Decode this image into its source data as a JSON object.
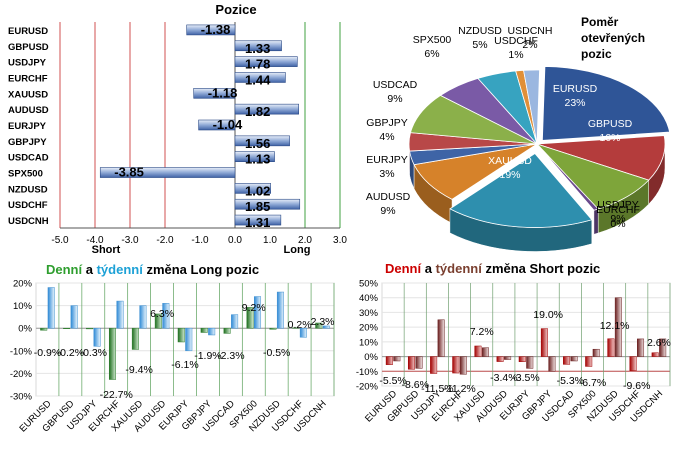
{
  "colors": {
    "green_title": "#2e9e2e",
    "blue_title": "#1da1d6",
    "red_title": "#cc0000",
    "brown_title": "#7a3f2f",
    "daily_bar": "#2e8b2e",
    "weekly_bar": "#4aa3e0",
    "short_daily": "#c00000",
    "short_weekly": "#7a3030",
    "pos_bar": "#5a7fbf",
    "short_line": "#c05050",
    "long_line": "#40a040"
  },
  "chart_data": [
    {
      "type": "bar",
      "orientation": "horizontal",
      "title": "Pozice",
      "categories": [
        "EURUSD",
        "GBPUSD",
        "USDJPY",
        "EURCHF",
        "XAUUSD",
        "AUDUSD",
        "EURJPY",
        "GBPJPY",
        "USDCAD",
        "SPX500",
        "NZDUSD",
        "USDCHF",
        "USDCNH"
      ],
      "values": [
        -1.38,
        1.33,
        1.78,
        1.44,
        -1.18,
        1.82,
        -1.04,
        1.56,
        1.13,
        -3.85,
        1.02,
        1.85,
        1.31
      ],
      "value_labels": [
        "-1.38",
        "1.33",
        "1.78",
        "1.44",
        "-1.18",
        "1.82",
        "-1.04",
        "1.56",
        "1.13",
        "-3.85",
        "1.02",
        "1.85",
        "1.31"
      ],
      "xlim": [
        -5.0,
        3.0
      ],
      "xticks": [
        "-5.0",
        "-4.0",
        "-3.0",
        "-2.0",
        "-1.0",
        "0.0",
        "1.0",
        "2.0",
        "3.0"
      ],
      "annotations": {
        "short": "Short",
        "long": "Long"
      }
    },
    {
      "type": "pie",
      "title_lines": [
        "Poměr",
        "otevřených",
        "pozic"
      ],
      "slices": [
        {
          "label": "EURUSD",
          "pct": "23%",
          "value": 23,
          "color": "#2f5597"
        },
        {
          "label": "GBPUSD",
          "pct": "10%",
          "value": 10,
          "color": "#b43c3c"
        },
        {
          "label": "USDJPY",
          "pct": "9%",
          "value": 9,
          "color": "#7ea53a"
        },
        {
          "label": "EURCHF",
          "pct": "0%",
          "value": 0.6,
          "color": "#6a4a8c"
        },
        {
          "label": "XAUUSD",
          "pct": "19%",
          "value": 19,
          "color": "#2e8fae"
        },
        {
          "label": "AUDUSD",
          "pct": "9%",
          "value": 9,
          "color": "#d6822a"
        },
        {
          "label": "EURJPY",
          "pct": "3%",
          "value": 3,
          "color": "#3e64a6"
        },
        {
          "label": "GBPJPY",
          "pct": "4%",
          "value": 4,
          "color": "#b84848"
        },
        {
          "label": "USDCAD",
          "pct": "9%",
          "value": 9,
          "color": "#8bb04a"
        },
        {
          "label": "SPX500",
          "pct": "6%",
          "value": 6,
          "color": "#7a5aa6"
        },
        {
          "label": "NZDUSD",
          "pct": "5%",
          "value": 5,
          "color": "#37a3c0"
        },
        {
          "label": "USDCHF",
          "pct": "1%",
          "value": 1,
          "color": "#e08f38"
        },
        {
          "label": "USDCNH",
          "pct": "2%",
          "value": 2,
          "color": "#9bb7e0"
        }
      ]
    },
    {
      "type": "bar",
      "title_parts": [
        "Denní",
        " a ",
        "týdenní",
        " změna Long pozic"
      ],
      "categories": [
        "EURUSD",
        "GBPUSD",
        "USDJPY",
        "EURCHF",
        "XAUUSD",
        "AUDUSD",
        "EURJPY",
        "GBPJPY",
        "USDCAD",
        "SPX500",
        "NZDUSD",
        "USDCHF",
        "USDCNH"
      ],
      "series": [
        {
          "values": [
            -0.9,
            -0.2,
            -0.3,
            -22.7,
            -9.4,
            6.3,
            -6.1,
            -1.9,
            -2.3,
            9.2,
            -0.5,
            0.2,
            2.3
          ]
        },
        {
          "values": [
            18,
            10,
            -8,
            12,
            10,
            11,
            -10,
            -3,
            6,
            14,
            16,
            -4,
            1
          ]
        }
      ],
      "data_labels": [
        "-0.9%",
        "-0.2%",
        "-0.3%",
        "-22.7%",
        "-9.4%",
        "6.3%",
        "-6.1%",
        "-1.9%",
        "-2.3%",
        "9.2%",
        "-0.5%",
        "0.2%",
        "2.3%"
      ],
      "ylim": [
        -30,
        20
      ],
      "yticks": [
        "20%",
        "10%",
        "0%",
        "-10%",
        "-20%",
        "-30%"
      ]
    },
    {
      "type": "bar",
      "title_parts": [
        "Denní",
        " a ",
        "týdenní",
        " změna Short pozic"
      ],
      "categories": [
        "EURUSD",
        "GBPUSD",
        "USDJPY",
        "EURCHF",
        "XAUUSD",
        "AUDUSD",
        "EURJPY",
        "GBPJPY",
        "USDCAD",
        "SPX500",
        "NZDUSD",
        "USDCHF",
        "USDCNH"
      ],
      "series": [
        {
          "values": [
            -5.5,
            -8.6,
            -11.5,
            -11.2,
            7.2,
            -3.4,
            -3.5,
            19.0,
            -5.3,
            -6.7,
            12.1,
            -9.6,
            2.6
          ]
        },
        {
          "values": [
            -3,
            -8,
            25,
            -12,
            6,
            -2,
            -8,
            -10,
            -3,
            5,
            40,
            12,
            12
          ]
        }
      ],
      "data_labels": [
        "-5.5%",
        "-8.6%",
        "-11.5%",
        "-11.2%",
        "7.2%",
        "-3.4%",
        "-3.5%",
        "19.0%",
        "-5.3%",
        "-6.7%",
        "12.1%",
        "-9.6%",
        "2.6%"
      ],
      "ylim": [
        -20,
        50
      ],
      "yticks": [
        "50%",
        "40%",
        "30%",
        "20%",
        "10%",
        "0%",
        "-10%",
        "-20%"
      ]
    }
  ]
}
